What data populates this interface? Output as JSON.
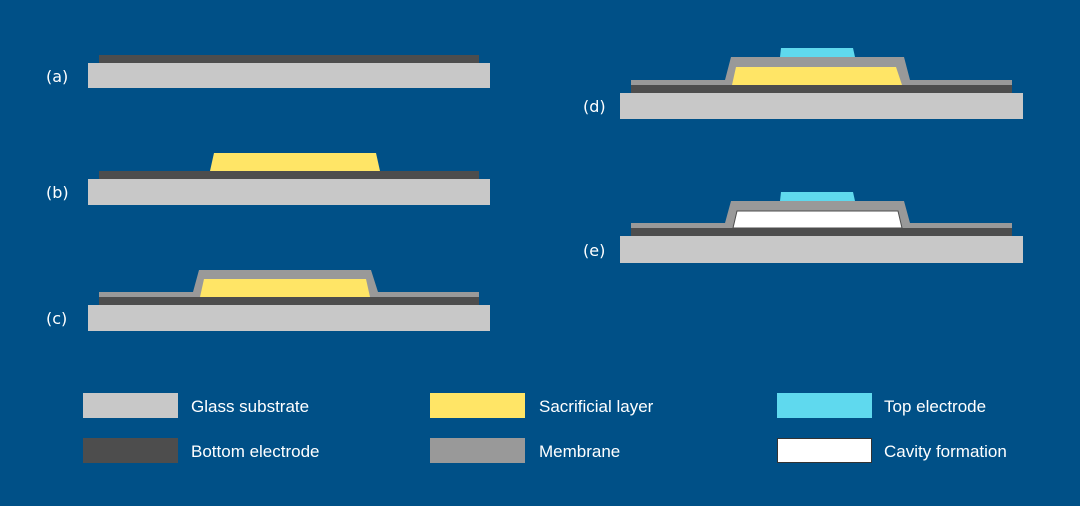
{
  "colors": {
    "background": "#005087",
    "glass_substrate": "#c8c8c8",
    "bottom_electrode": "#4d4d4d",
    "membrane": "#999999",
    "sacrificial_layer": "#ffe566",
    "top_electrode": "#5fd9ee",
    "cavity": "#ffffff"
  },
  "steps": [
    {
      "label": "(a)"
    },
    {
      "label": "(b)"
    },
    {
      "label": "(c)"
    },
    {
      "label": "(d)"
    },
    {
      "label": "(e)"
    }
  ],
  "legend": [
    {
      "label": "Glass substrate"
    },
    {
      "label": "Sacrificial layer"
    },
    {
      "label": "Top electrode"
    },
    {
      "label": "Bottom electrode"
    },
    {
      "label": "Membrane"
    },
    {
      "label": "Cavity formation"
    }
  ]
}
